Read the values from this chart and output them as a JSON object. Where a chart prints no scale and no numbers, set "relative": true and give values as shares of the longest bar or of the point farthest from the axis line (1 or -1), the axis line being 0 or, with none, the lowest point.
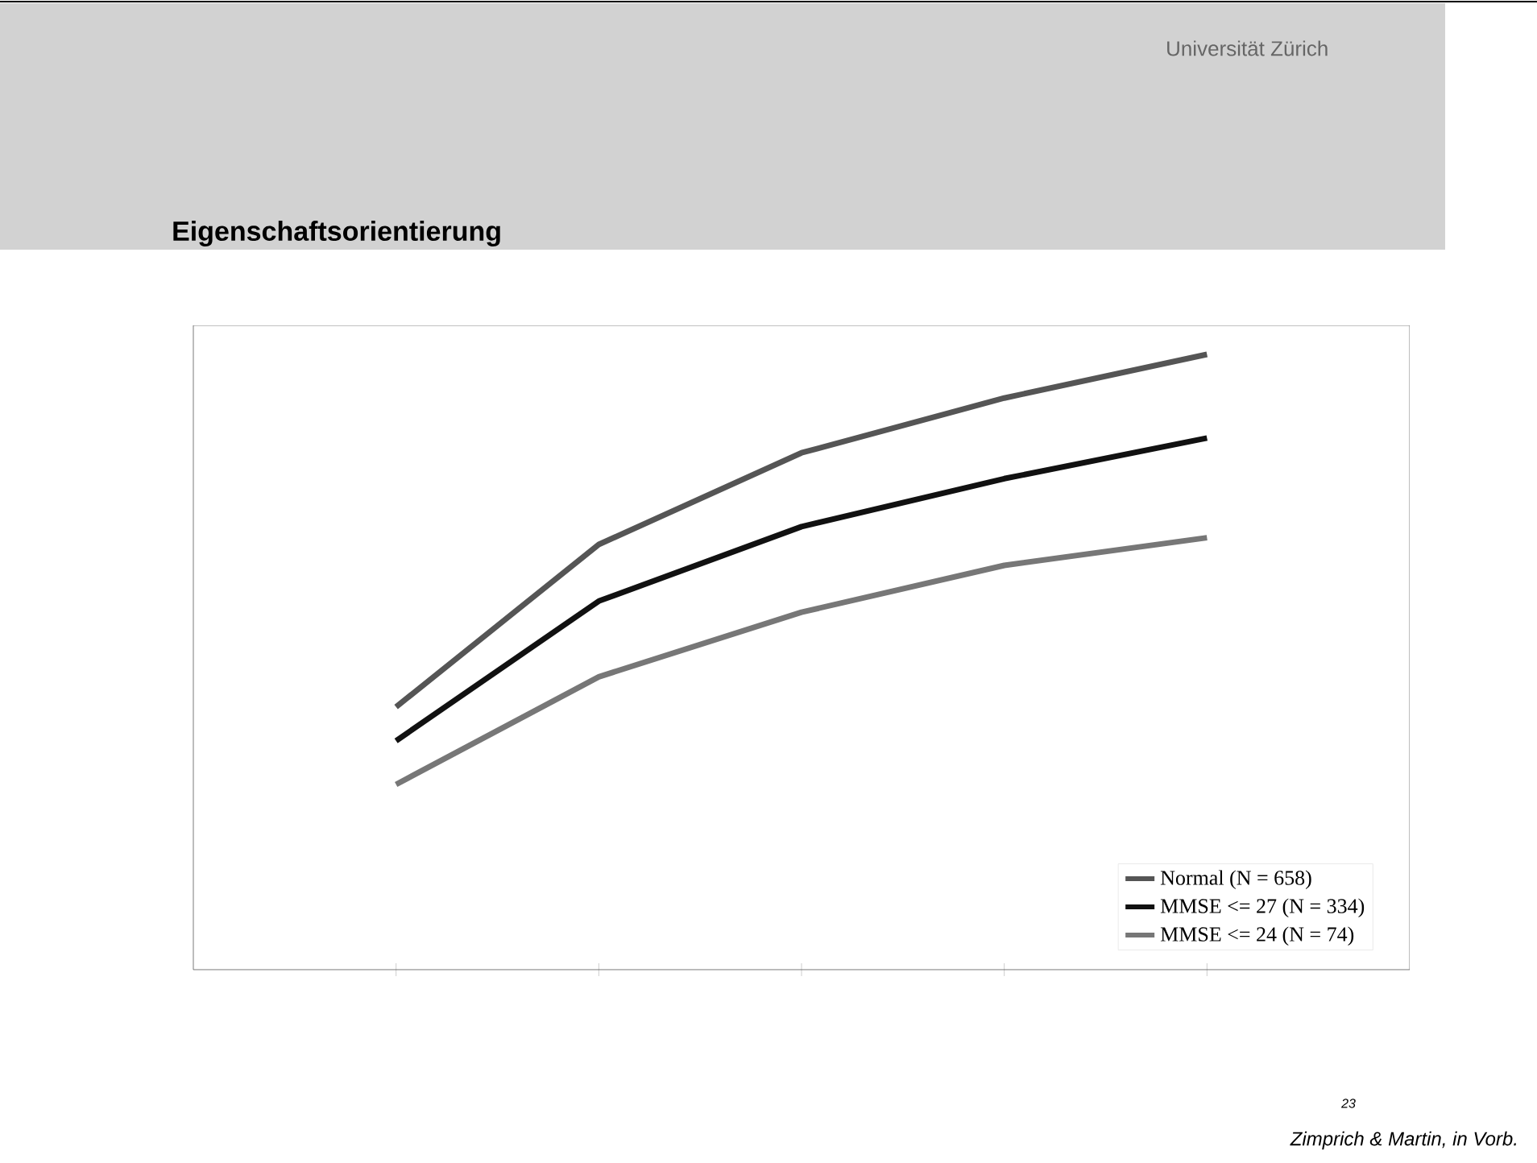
{
  "chart_data": {
    "type": "line",
    "title": "Eigenschaftsorientierung",
    "annotations": [
      "Universität Zürich",
      "23",
      "Zimprich & Martin, in Vorb."
    ],
    "relative": true,
    "categories": [
      null,
      null,
      null,
      null,
      null
    ],
    "series": [
      {
        "name": "Normal (N = 658)",
        "color": "#555555",
        "values": [
          0.427,
          0.691,
          0.84,
          0.929,
          1
        ]
      },
      {
        "name": "MMSE <= 27 (N = 334)",
        "color": "#111111",
        "values": [
          0.372,
          0.599,
          0.72,
          0.798,
          0.864
        ]
      },
      {
        "name": "MMSE <= 24 (N = 74)",
        "color": "#777777",
        "values": [
          0.301,
          0.476,
          0.581,
          0.657,
          0.702
        ]
      }
    ],
    "legend": "bottom right",
    "grid": false,
    "marker": "none",
    "line_style": "solid"
  }
}
